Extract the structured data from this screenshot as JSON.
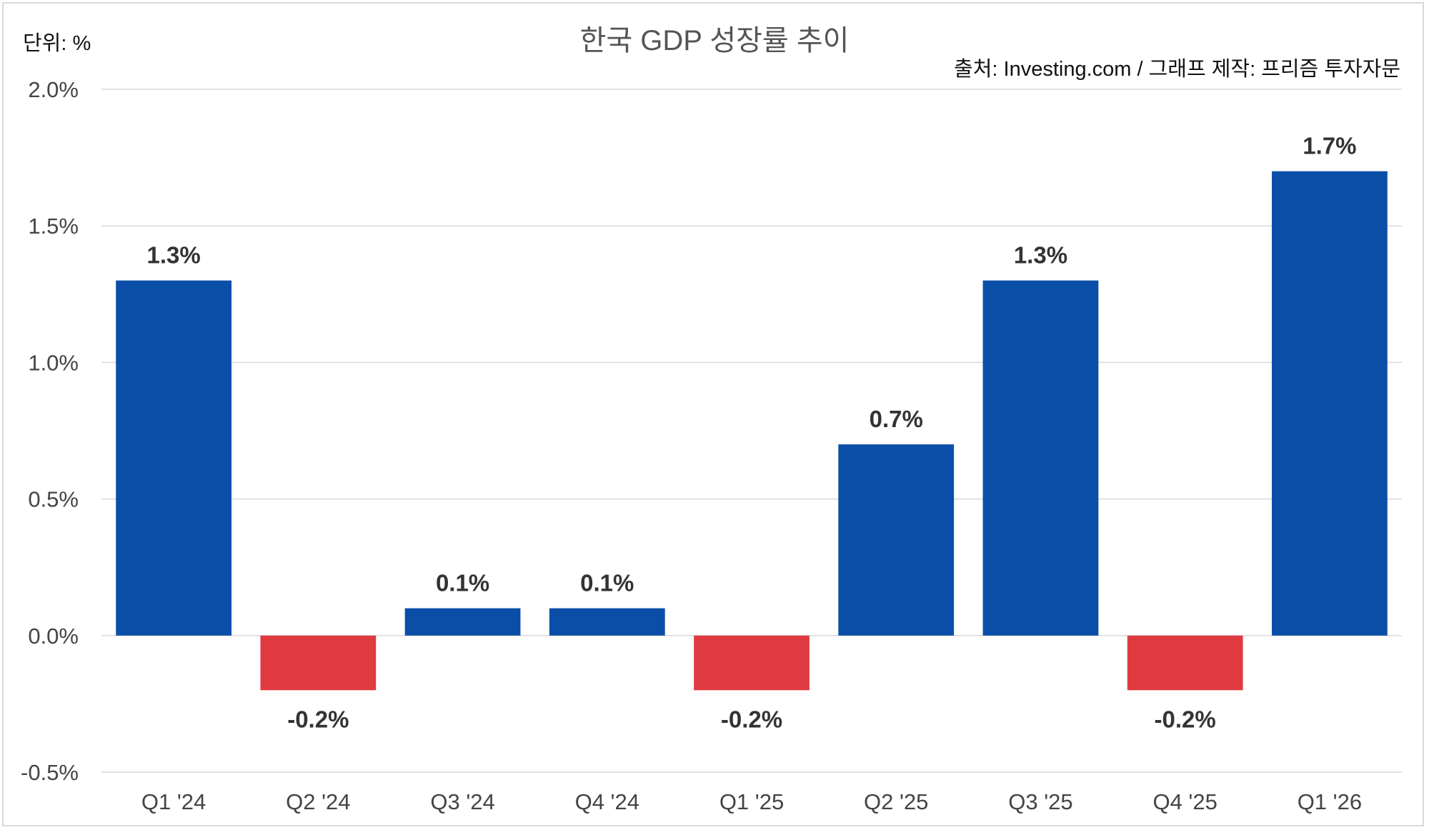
{
  "chart_data": {
    "type": "bar",
    "title": "한국 GDP 성장률 추이",
    "unit_label": "단위: %",
    "source": "출처: Investing.com / 그래프 제작: 프리즘 투자자문",
    "categories": [
      "Q1 '24",
      "Q2 '24",
      "Q3 '24",
      "Q4 '24",
      "Q1 '25",
      "Q2 '25",
      "Q3 '25",
      "Q4 '25",
      "Q1 '26"
    ],
    "values": [
      1.3,
      -0.2,
      0.1,
      0.1,
      -0.2,
      0.7,
      1.3,
      -0.2,
      1.7
    ],
    "value_labels": [
      "1.3%",
      "-0.2%",
      "0.1%",
      "0.1%",
      "-0.2%",
      "0.7%",
      "1.3%",
      "-0.2%",
      "1.7%"
    ],
    "y_ticks": [
      2.0,
      1.5,
      1.0,
      0.5,
      0.0,
      -0.5
    ],
    "y_tick_labels": [
      "2.0%",
      "1.5%",
      "1.0%",
      "0.5%",
      "0.0%",
      "-0.5%"
    ],
    "ylim": [
      -0.5,
      2.0
    ],
    "grid": true,
    "legend": "none",
    "positive_color": "#0b4ea8",
    "negative_color": "#e03a41"
  }
}
